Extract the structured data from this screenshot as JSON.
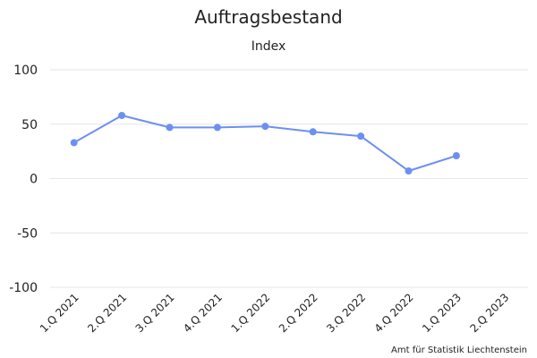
{
  "chart_data": {
    "type": "line",
    "title": "Auftragsbestand",
    "subtitle": "Index",
    "categories": [
      "1.Q 2021",
      "2.Q 2021",
      "3.Q 2021",
      "4.Q 2021",
      "1.Q 2022",
      "2.Q 2022",
      "3.Q 2022",
      "4.Q 2022",
      "1.Q 2023",
      "2.Q 2023"
    ],
    "series": [
      {
        "values": [
          33,
          58,
          47,
          47,
          48,
          43,
          39,
          7,
          21,
          null
        ],
        "color": "#6c8ff2"
      }
    ],
    "yticks": [
      "100",
      "50",
      "0",
      "-50",
      "-100"
    ],
    "ylim": [
      -100,
      100
    ],
    "grid": true,
    "legend": "none"
  },
  "credits": "Amt für Statistik Liechtenstein"
}
